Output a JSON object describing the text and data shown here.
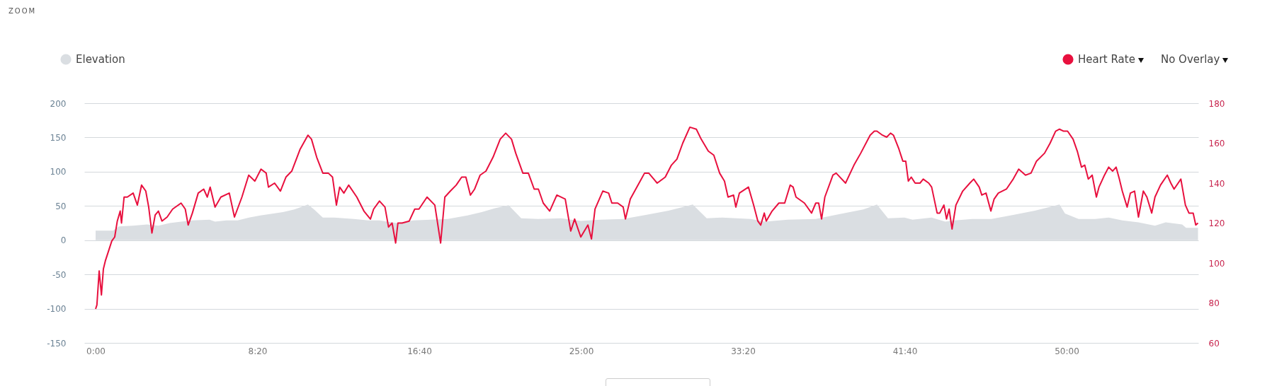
{
  "chart_data": {
    "type": "line",
    "xlim": [
      -35,
      3407
    ],
    "xticks": [
      {
        "value": 0,
        "label": "0:00"
      },
      {
        "value": 500,
        "label": "8:20"
      },
      {
        "value": 1000,
        "label": "16:40"
      },
      {
        "value": 1500,
        "label": "25:00"
      },
      {
        "value": 2000,
        "label": "33:20"
      },
      {
        "value": 2500,
        "label": "41:40"
      },
      {
        "value": 3000,
        "label": "50:00"
      }
    ],
    "ylim": [
      -150,
      200
    ],
    "yticks": [
      -150,
      -100,
      -50,
      0,
      50,
      100,
      150,
      200
    ],
    "y2lim": [
      60,
      180
    ],
    "y2ticks": [
      60,
      80,
      100,
      120,
      140,
      160,
      180
    ],
    "grid": "y",
    "legend": "top",
    "annotations": [
      "ZOOM",
      "No Overlay"
    ],
    "series": [
      {
        "name": "Elevation",
        "type": "area",
        "color": "#dadee2",
        "x": [
          0,
          54,
          72,
          115,
          159,
          194,
          229,
          299,
          352,
          369,
          404,
          439,
          474,
          509,
          579,
          614,
          656,
          675,
          702,
          737,
          798,
          842,
          877,
          929,
          982,
          1034,
          1088,
          1149,
          1193,
          1236,
          1276,
          1315,
          1368,
          1438,
          1499,
          1560,
          1630,
          1700,
          1770,
          1845,
          1888,
          1936,
          2024,
          2068,
          2138,
          2225,
          2286,
          2330,
          2372,
          2414,
          2448,
          2499,
          2524,
          2583,
          2625,
          2654,
          2709,
          2768,
          2835,
          2902,
          2978,
          2995,
          3037,
          3088,
          3130,
          3172,
          3222,
          3273,
          3306,
          3357,
          3369,
          3406
        ],
        "values": [
          14,
          14,
          20,
          21,
          23,
          21,
          25,
          29,
          30,
          27,
          29,
          29,
          33,
          36,
          41,
          45,
          52,
          45,
          33,
          33,
          31,
          29,
          29,
          25,
          29,
          30,
          31,
          36,
          41,
          47,
          51,
          32,
          31,
          32,
          28,
          30,
          31,
          37,
          43,
          52,
          32,
          33,
          31,
          27,
          30,
          31,
          37,
          41,
          45,
          52,
          32,
          33,
          30,
          33,
          27,
          29,
          31,
          31,
          37,
          43,
          52,
          39,
          31,
          31,
          33,
          29,
          26,
          21,
          26,
          23,
          18,
          18
        ]
      },
      {
        "name": "Heart Rate",
        "type": "line",
        "axis": "y2",
        "color": "#e8103e",
        "x": [
          0,
          4,
          11,
          18,
          24,
          30,
          44,
          50,
          59,
          67,
          76,
          80,
          88,
          98,
          116,
          129,
          142,
          155,
          164,
          174,
          184,
          194,
          205,
          221,
          238,
          264,
          277,
          286,
          299,
          317,
          334,
          345,
          354,
          369,
          387,
          413,
          429,
          452,
          473,
          492,
          511,
          527,
          534,
          553,
          571,
          588,
          606,
          632,
          656,
          667,
          683,
          702,
          719,
          732,
          744,
          754,
          767,
          782,
          807,
          829,
          849,
          859,
          877,
          894,
          905,
          916,
          927,
          934,
          947,
          969,
          986,
          999,
          1024,
          1048,
          1066,
          1079,
          1096,
          1114,
          1131,
          1144,
          1158,
          1171,
          1188,
          1206,
          1228,
          1250,
          1267,
          1285,
          1298,
          1320,
          1337,
          1355,
          1368,
          1383,
          1403,
          1425,
          1451,
          1468,
          1480,
          1499,
          1521,
          1532,
          1543,
          1567,
          1585,
          1595,
          1613,
          1630,
          1637,
          1652,
          1696,
          1709,
          1735,
          1760,
          1779,
          1796,
          1814,
          1836,
          1856,
          1871,
          1893,
          1910,
          1928,
          1943,
          1954,
          1971,
          1978,
          1989,
          2017,
          2033,
          2046,
          2055,
          2066,
          2072,
          2090,
          2111,
          2129,
          2146,
          2155,
          2164,
          2190,
          2212,
          2225,
          2234,
          2243,
          2253,
          2278,
          2288,
          2317,
          2343,
          2364,
          2393,
          2406,
          2414,
          2431,
          2444,
          2456,
          2465,
          2482,
          2494,
          2503,
          2511,
          2520,
          2532,
          2547,
          2557,
          2574,
          2583,
          2600,
          2608,
          2621,
          2629,
          2637,
          2646,
          2658,
          2679,
          2701,
          2713,
          2730,
          2738,
          2751,
          2766,
          2776,
          2789,
          2814,
          2835,
          2852,
          2873,
          2890,
          2907,
          2932,
          2949,
          2966,
          2978,
          2991,
          3003,
          3020,
          3033,
          3046,
          3056,
          3067,
          3079,
          3092,
          3100,
          3117,
          3130,
          3142,
          3153,
          3163,
          3172,
          3187,
          3197,
          3210,
          3222,
          3237,
          3248,
          3263,
          3273,
          3290,
          3311,
          3322,
          3332,
          3353,
          3367,
          3378,
          3391,
          3399,
          3406
        ],
        "values": [
          77,
          79,
          96,
          84,
          97,
          101,
          108,
          111,
          113,
          121,
          126,
          120,
          133,
          133,
          135,
          129,
          139,
          136,
          128,
          115,
          124,
          126,
          121,
          123,
          127,
          130,
          127,
          119,
          125,
          135,
          137,
          133,
          138,
          128,
          133,
          135,
          123,
          133,
          144,
          141,
          147,
          145,
          138,
          140,
          136,
          143,
          146,
          157,
          164,
          162,
          153,
          145,
          145,
          143,
          129,
          138,
          135,
          139,
          133,
          126,
          122,
          127,
          131,
          128,
          118,
          120,
          110,
          120,
          120,
          121,
          127,
          127,
          133,
          129,
          110,
          133,
          136,
          139,
          143,
          143,
          134,
          137,
          144,
          146,
          153,
          162,
          165,
          162,
          155,
          145,
          145,
          137,
          137,
          130,
          126,
          134,
          132,
          116,
          122,
          113,
          119,
          112,
          127,
          136,
          135,
          130,
          130,
          128,
          122,
          132,
          145,
          145,
          140,
          143,
          149,
          152,
          160,
          168,
          167,
          162,
          156,
          154,
          145,
          141,
          133,
          134,
          128,
          135,
          138,
          129,
          121,
          119,
          125,
          121,
          126,
          130,
          130,
          139,
          138,
          133,
          130,
          125,
          130,
          130,
          122,
          133,
          144,
          145,
          140,
          149,
          155,
          164,
          166,
          166,
          164,
          163,
          165,
          164,
          157,
          151,
          151,
          141,
          143,
          140,
          140,
          142,
          140,
          138,
          125,
          125,
          129,
          122,
          127,
          117,
          129,
          136,
          140,
          142,
          138,
          134,
          135,
          126,
          132,
          135,
          137,
          142,
          147,
          144,
          145,
          151,
          155,
          160,
          166,
          167,
          166,
          166,
          162,
          156,
          148,
          149,
          142,
          144,
          133,
          138,
          144,
          148,
          146,
          148,
          142,
          136,
          128,
          135,
          136,
          123,
          136,
          133,
          125,
          133,
          139,
          144,
          140,
          137,
          142,
          129,
          125,
          125,
          119,
          120
        ]
      }
    ]
  }
}
